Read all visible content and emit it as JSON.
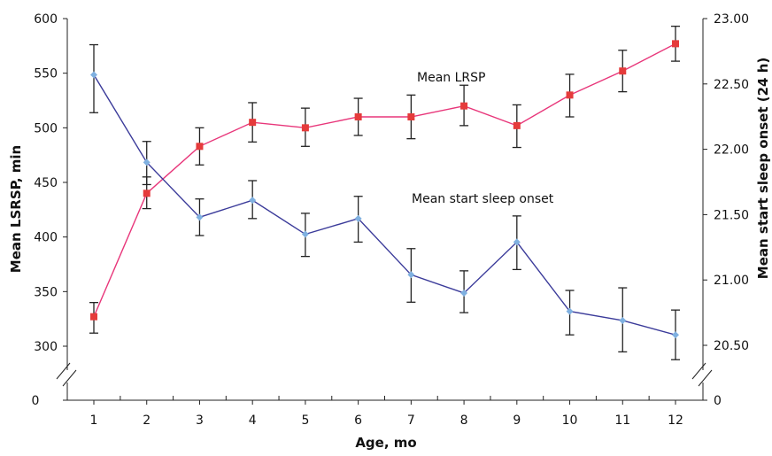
{
  "chart_data": {
    "type": "line",
    "xlabel": "Age, mo",
    "ylabel_left": "Mean LSRSP, min",
    "ylabel_right": "Mean start sleep onset (24 h)",
    "x": [
      1,
      2,
      3,
      4,
      5,
      6,
      7,
      8,
      9,
      10,
      11,
      12
    ],
    "x_tick_labels": [
      "1",
      "2",
      "3",
      "4",
      "5",
      "6",
      "7",
      "8",
      "9",
      "10",
      "11",
      "12"
    ],
    "left_axis": {
      "range": [
        300,
        600
      ],
      "ticks": [
        300,
        350,
        400,
        450,
        500,
        550,
        600
      ],
      "tick_labels": [
        "300",
        "350",
        "400",
        "450",
        "500",
        "550",
        "600"
      ],
      "zero_label": "0",
      "broken": true
    },
    "right_axis": {
      "range": [
        20.3,
        23.0
      ],
      "ticks": [
        20.5,
        21.0,
        21.5,
        22.0,
        22.5,
        23.0
      ],
      "tick_labels": [
        "20.50",
        "21.00",
        "21.50",
        "22.00",
        "22.50",
        "23.00"
      ],
      "zero_label": "0",
      "broken": true
    },
    "series": [
      {
        "name": "Mean LRSP",
        "axis": "left",
        "color": "#e8367a",
        "marker_color": "#e53b3b",
        "marker": "square",
        "values": [
          327,
          440,
          483,
          505,
          500,
          510,
          510,
          520,
          502,
          530,
          552,
          577
        ],
        "err_low": [
          312,
          426,
          466,
          487,
          483,
          493,
          490,
          502,
          482,
          510,
          533,
          561
        ],
        "err_high": [
          340,
          455,
          500,
          523,
          518,
          527,
          530,
          539,
          521,
          549,
          571,
          593
        ]
      },
      {
        "name": "Mean start sleep onset",
        "axis": "right",
        "color": "#3b3b9a",
        "marker_color": "#7fb0e0",
        "marker": "diamond",
        "values": [
          22.57,
          21.9,
          21.48,
          21.61,
          21.35,
          21.47,
          21.04,
          20.9,
          21.29,
          20.76,
          20.69,
          20.58
        ],
        "err_low": [
          22.28,
          21.73,
          21.34,
          21.47,
          21.18,
          21.29,
          20.83,
          20.75,
          21.08,
          20.58,
          20.45,
          20.39
        ],
        "err_high": [
          22.8,
          22.06,
          21.62,
          21.76,
          21.51,
          21.64,
          21.24,
          21.07,
          21.49,
          20.92,
          20.94,
          20.77
        ]
      }
    ],
    "grid": false
  }
}
